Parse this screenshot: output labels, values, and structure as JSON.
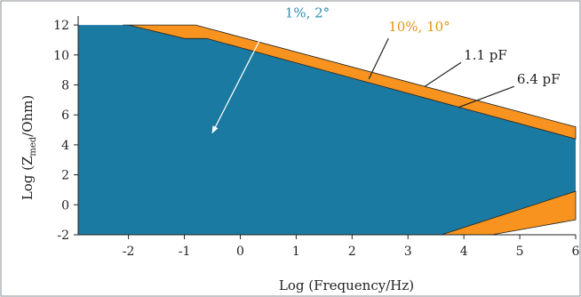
{
  "chart_data": {
    "type": "area",
    "xlabel": "Log (Frequency/Hz)",
    "ylabel_main": "Log (Z",
    "ylabel_sub": "med",
    "ylabel_end": "/Ohm)",
    "xlim": [
      -2.9,
      6.0
    ],
    "ylim": [
      -2.0,
      12.6
    ],
    "x_ticks": [
      -2,
      -1,
      0,
      1,
      2,
      3,
      4,
      5,
      6
    ],
    "y_ticks": [
      -2,
      0,
      2,
      4,
      6,
      8,
      10,
      12
    ],
    "grid": false,
    "colors": {
      "teal": "#1b7aa2",
      "orange": "#f7931e",
      "frame": "#8a8f94",
      "annotation_teal": "#2e8fb5",
      "annotation_orange": "#e8920f"
    },
    "series": [
      {
        "name": "1%, 2°",
        "color": "#1b7aa2",
        "polygon": [
          [
            -2.9,
            12.0
          ],
          [
            -2.0,
            12.0
          ],
          [
            -1.0,
            11.1
          ],
          [
            -0.6,
            11.1
          ],
          [
            6.0,
            4.4
          ],
          [
            6.0,
            0.9
          ],
          [
            3.6,
            -2.0
          ],
          [
            -2.9,
            -2.0
          ]
        ]
      },
      {
        "name": "10%, 10°",
        "color": "#f7931e",
        "bands": [
          [
            [
              -2.1,
              12.0
            ],
            [
              -0.8,
              12.0
            ],
            [
              6.0,
              5.2
            ],
            [
              6.0,
              4.4
            ],
            [
              -0.6,
              11.1
            ],
            [
              -1.0,
              11.1
            ],
            [
              -2.0,
              12.0
            ]
          ],
          [
            [
              3.6,
              -2.0
            ],
            [
              4.5,
              -2.0
            ],
            [
              6.0,
              -1.0
            ],
            [
              6.0,
              0.9
            ]
          ]
        ]
      }
    ],
    "annotations": [
      {
        "text": "1%, 2°",
        "color": "#2e8fb5",
        "tx": 0.8,
        "ty": 12.5,
        "arrow_from": [
          0.5,
          12.1
        ],
        "arrow_to": [
          -0.5,
          4.8
        ],
        "arrow_color": "#ffffff"
      },
      {
        "text": "10%, 10°",
        "color": "#e8920f",
        "tx": 2.65,
        "ty": 11.6,
        "arrow_from": [
          2.65,
          11.1
        ],
        "arrow_to": [
          2.3,
          8.4
        ],
        "arrow_color": "#222222"
      },
      {
        "text": "1.1 pF",
        "color": "#222222",
        "tx": 4.0,
        "ty": 9.7,
        "arrow_from": [
          3.95,
          9.5
        ],
        "arrow_to": [
          3.3,
          7.9
        ],
        "arrow_color": "#222222"
      },
      {
        "text": "6.4 pF",
        "color": "#222222",
        "tx": 4.95,
        "ty": 8.1,
        "arrow_from": [
          4.9,
          7.9
        ],
        "arrow_to": [
          3.9,
          6.5
        ],
        "arrow_color": "#222222"
      }
    ]
  }
}
